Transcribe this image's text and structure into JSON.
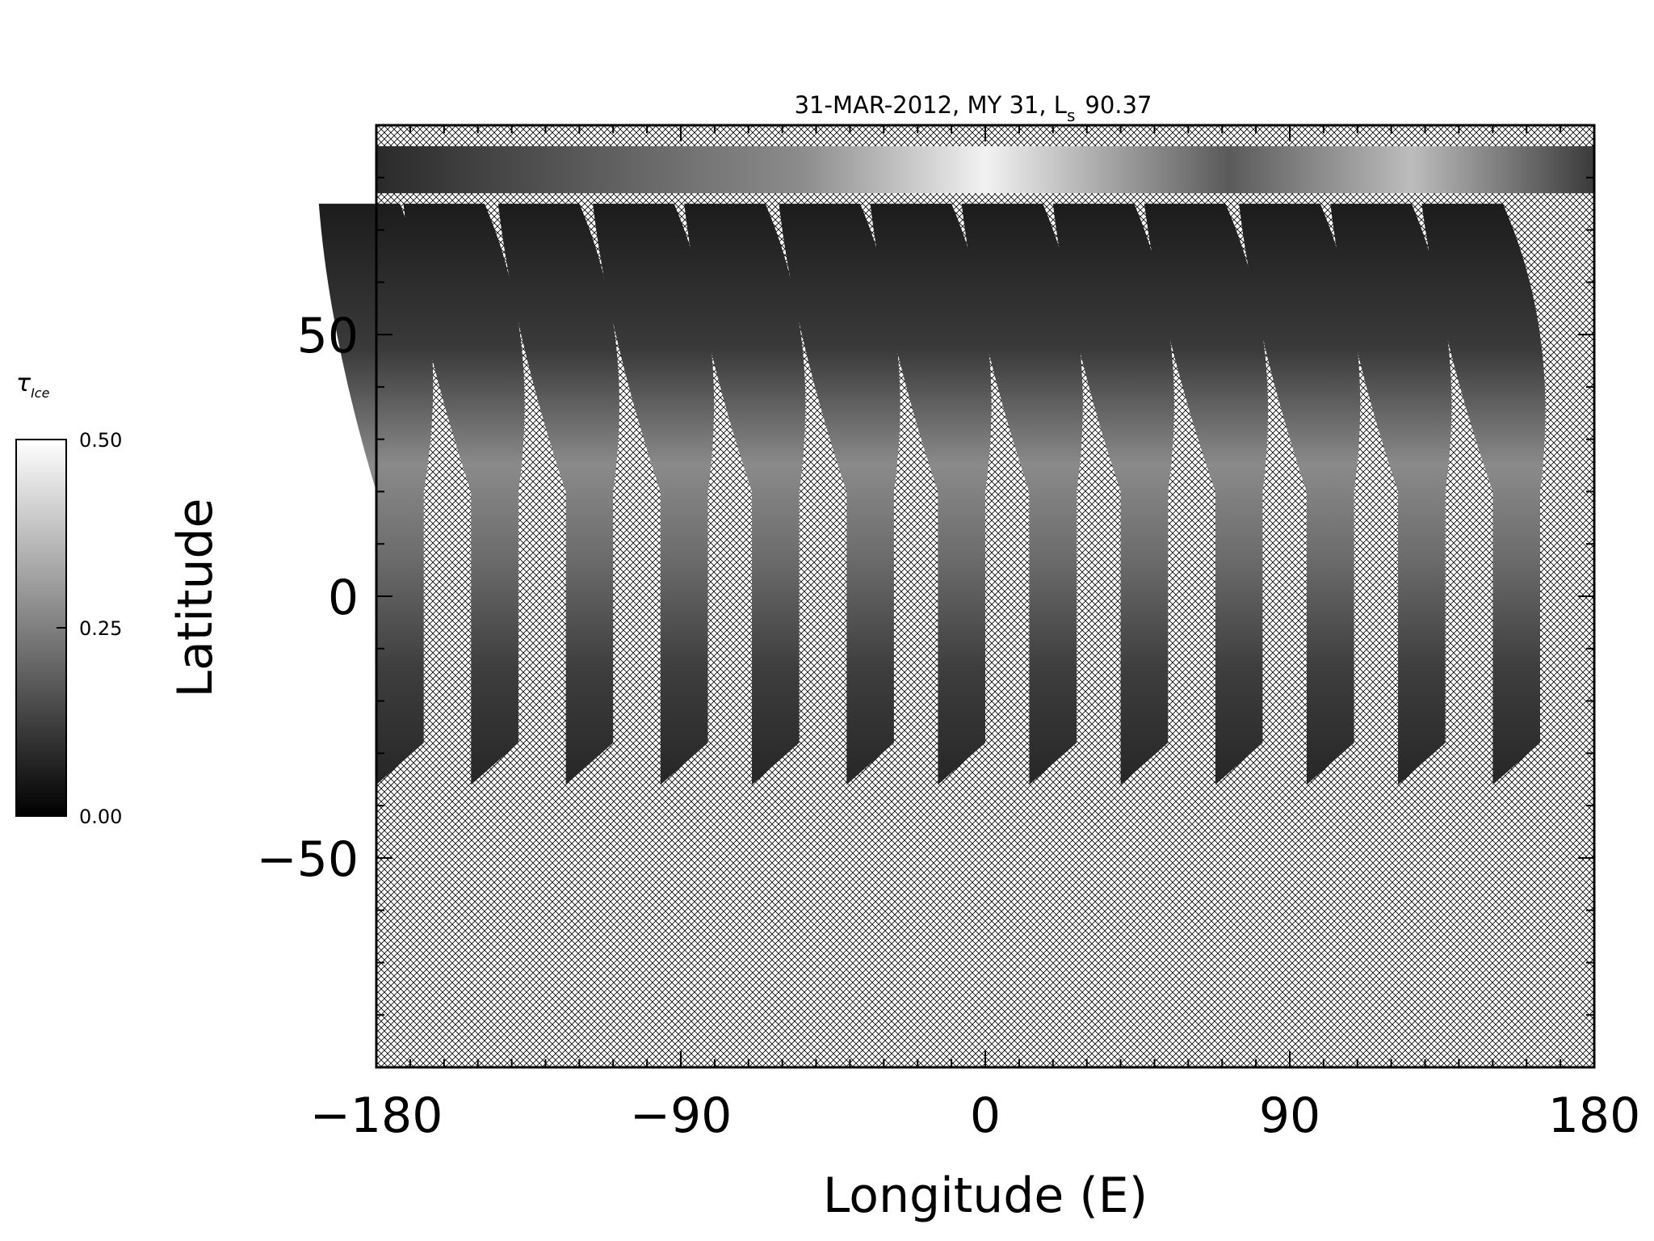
{
  "chart_data": {
    "type": "heatmap",
    "title": "31-MAR-2012, MY 31,  L",
    "title_sub": "s",
    "title_value": "90.37",
    "xlabel": "Longitude (E)",
    "ylabel": "Latitude",
    "xlim": [
      -180,
      180
    ],
    "ylim": [
      -90,
      90
    ],
    "x_ticks": [
      -180,
      -90,
      0,
      90,
      180
    ],
    "x_tick_labels": [
      "−180",
      "−90",
      "0",
      "90",
      "180"
    ],
    "y_ticks": [
      -50,
      0,
      50
    ],
    "y_tick_labels": [
      "−50",
      "0",
      "50"
    ],
    "colorbar": {
      "title": "τ",
      "title_sub": "Ice",
      "min": 0.0,
      "max": 0.5,
      "ticks": [
        0.0,
        0.25,
        0.5
      ],
      "tick_labels": [
        "0.00",
        "0.25",
        "0.50"
      ],
      "colormap": "grayscale"
    },
    "no_data_fill": "crosshatch",
    "swaths": [
      {
        "lon_top": -177,
        "lon_bottom": -173
      },
      {
        "lon_top": -152,
        "lon_bottom": -145
      },
      {
        "lon_top": -124,
        "lon_bottom": -117
      },
      {
        "lon_top": -96,
        "lon_bottom": -89
      },
      {
        "lon_top": -69,
        "lon_bottom": -62
      },
      {
        "lon_top": -41,
        "lon_bottom": -34
      },
      {
        "lon_top": -14,
        "lon_bottom": -7
      },
      {
        "lon_top": 13,
        "lon_bottom": 20
      },
      {
        "lon_top": 40,
        "lon_bottom": 47
      },
      {
        "lon_top": 67,
        "lon_bottom": 75
      },
      {
        "lon_top": 95,
        "lon_bottom": 102
      },
      {
        "lon_top": 122,
        "lon_bottom": 129
      },
      {
        "lon_top": 149,
        "lon_bottom": 157
      }
    ],
    "swath_lat_top": 75,
    "swath_lat_bottom": -36,
    "polar_cap_lat_bottom": 77
  }
}
